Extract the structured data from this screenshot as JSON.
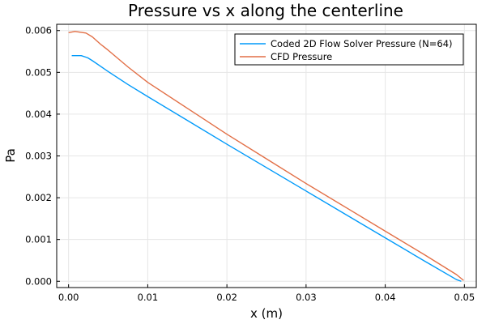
{
  "chart_data": {
    "type": "line",
    "title": "Pressure vs x along the centerline",
    "xlabel": "x (m)",
    "ylabel": "Pa",
    "xlim": [
      -0.0015,
      0.0515
    ],
    "ylim": [
      -0.00015,
      0.00615
    ],
    "xticks": [
      0.0,
      0.01,
      0.02,
      0.03,
      0.04,
      0.05
    ],
    "xtick_labels": [
      "0.00",
      "0.01",
      "0.02",
      "0.03",
      "0.04",
      "0.05"
    ],
    "yticks": [
      0.0,
      0.001,
      0.002,
      0.003,
      0.004,
      0.005,
      0.006
    ],
    "ytick_labels": [
      "0.000",
      "0.001",
      "0.002",
      "0.003",
      "0.004",
      "0.005",
      "0.006"
    ],
    "grid": true,
    "legend_position": "top-right",
    "series": [
      {
        "name": "Coded 2D Flow Solver Pressure (N=64)",
        "color": "#009AFA",
        "x": [
          0.0004,
          0.0016,
          0.0024,
          0.003,
          0.004,
          0.005,
          0.0075,
          0.01,
          0.015,
          0.02,
          0.025,
          0.03,
          0.035,
          0.04,
          0.045,
          0.049,
          0.0496
        ],
        "y": [
          0.0054,
          0.0054,
          0.00535,
          0.00528,
          0.00515,
          0.00502,
          0.00471,
          0.00442,
          0.00385,
          0.00328,
          0.00272,
          0.00216,
          0.0016,
          0.00104,
          0.00048,
          4e-05,
          0.0
        ]
      },
      {
        "name": "CFD Pressure",
        "color": "#E26F46",
        "x": [
          0.0,
          0.0008,
          0.0015,
          0.0022,
          0.003,
          0.004,
          0.005,
          0.0075,
          0.01,
          0.015,
          0.02,
          0.025,
          0.03,
          0.035,
          0.04,
          0.045,
          0.049,
          0.0499
        ],
        "y": [
          0.00595,
          0.00598,
          0.00596,
          0.00594,
          0.00585,
          0.00568,
          0.00553,
          0.00513,
          0.00476,
          0.00414,
          0.00352,
          0.00293,
          0.00234,
          0.00177,
          0.0012,
          0.00063,
          0.00016,
          2e-05
        ]
      }
    ]
  }
}
